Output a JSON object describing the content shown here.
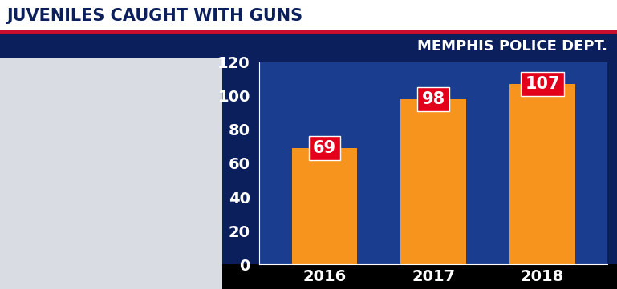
{
  "chart_data": {
    "type": "bar",
    "title": "JUVENILES CAUGHT WITH GUNS",
    "subtitle": "MEMPHIS POLICE DEPT.",
    "categories": [
      "2016",
      "2017",
      "2018"
    ],
    "values": [
      69,
      98,
      107
    ],
    "color": "#f7941d",
    "ylim": [
      0,
      120
    ],
    "yticks": [
      0,
      20,
      40,
      60,
      80,
      100,
      120
    ],
    "grid": false,
    "data_labels": true
  }
}
